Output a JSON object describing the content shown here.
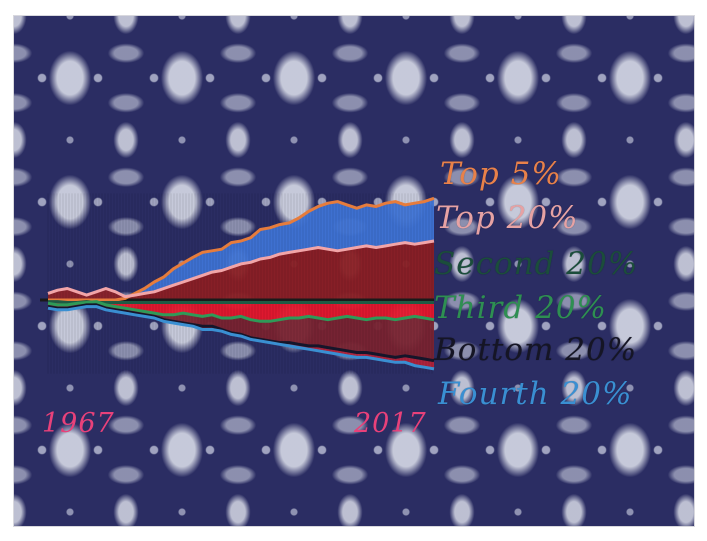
{
  "chart_data": {
    "type": "area",
    "x_start": "1967",
    "x_end": "2017",
    "baseline_color": "#1a1a1a",
    "series": [
      {
        "name": "Top 5%",
        "color": "#e67c3c",
        "fill": "#3f74d6",
        "values": [
          0,
          0,
          0,
          0,
          0,
          0,
          0,
          0,
          2,
          8,
          14,
          22,
          28,
          38,
          45,
          52,
          58,
          60,
          62,
          70,
          72,
          76,
          86,
          88,
          92,
          94,
          100,
          108,
          114,
          118,
          120,
          116,
          112,
          116,
          114,
          118,
          120,
          116,
          118,
          120,
          124
        ]
      },
      {
        "name": "Top 20%",
        "color": "#f2a5a8",
        "fill": "#8c1f24",
        "values": [
          8,
          12,
          14,
          10,
          6,
          10,
          14,
          10,
          4,
          6,
          8,
          10,
          14,
          18,
          22,
          26,
          30,
          34,
          36,
          40,
          44,
          46,
          50,
          52,
          56,
          58,
          60,
          62,
          64,
          62,
          60,
          62,
          64,
          66,
          64,
          66,
          68,
          70,
          68,
          70,
          72
        ]
      },
      {
        "name": "Second 20%",
        "color": "#1f5a44",
        "fill": "#1c1c2c",
        "values": [
          -2,
          -2,
          -3,
          -3,
          -2,
          -3,
          -3,
          -3,
          -3,
          -3,
          -3,
          -3,
          -3,
          -3,
          -3,
          -3,
          -3,
          -3,
          -3,
          -3,
          -3,
          -3,
          -3,
          -3,
          -3,
          -3,
          -3,
          -3,
          -3,
          -3,
          -3,
          -3,
          -3,
          -3,
          -3,
          -3,
          -3,
          -3,
          -3,
          -3,
          -3
        ]
      },
      {
        "name": "Third 20%",
        "color": "#2f9a58",
        "fill": "#e8172c",
        "values": [
          -4,
          -6,
          -6,
          -4,
          -3,
          -2,
          -6,
          -8,
          -10,
          -12,
          -14,
          -16,
          -18,
          -18,
          -16,
          -18,
          -20,
          -18,
          -22,
          -22,
          -20,
          -24,
          -26,
          -26,
          -24,
          -22,
          -22,
          -20,
          -22,
          -24,
          -22,
          -20,
          -22,
          -24,
          -22,
          -22,
          -24,
          -22,
          -20,
          -22,
          -24
        ]
      },
      {
        "name": "Bottom 20%",
        "color": "#15152a",
        "fill": "#7a2330",
        "values": [
          -8,
          -10,
          -10,
          -8,
          -6,
          -6,
          -10,
          -12,
          -14,
          -16,
          -18,
          -20,
          -24,
          -26,
          -28,
          -30,
          -32,
          -32,
          -36,
          -40,
          -42,
          -46,
          -48,
          -50,
          -52,
          -52,
          -54,
          -56,
          -56,
          -58,
          -60,
          -62,
          -64,
          -64,
          -66,
          -68,
          -70,
          -68,
          -70,
          -72,
          -74
        ]
      },
      {
        "name": "Fourth 20%",
        "color": "#3a8fd2",
        "fill": "#b3223a",
        "values": [
          -10,
          -12,
          -12,
          -10,
          -8,
          -8,
          -12,
          -14,
          -16,
          -18,
          -20,
          -22,
          -26,
          -28,
          -30,
          -32,
          -36,
          -36,
          -38,
          -42,
          -44,
          -48,
          -50,
          -52,
          -54,
          -56,
          -58,
          -60,
          -62,
          -64,
          -66,
          -68,
          -70,
          -70,
          -72,
          -74,
          -76,
          -76,
          -80,
          -82,
          -84
        ]
      }
    ],
    "legend": [
      "Top 5%",
      "Top 20%",
      "Second 20%",
      "Third 20%",
      "Bottom 20%",
      "Fourth 20%"
    ],
    "year_labels": {
      "start": "1967",
      "end": "2017",
      "color": "#e8417a"
    }
  },
  "legend_colors": {
    "Top 5%": "#e8814a",
    "Top 20%": "#e6a2a4",
    "Second 20%": "#1b4d3b",
    "Third 20%": "#2e8f52",
    "Bottom 20%": "#151525",
    "Fourth 20%": "#3a8fd2"
  }
}
